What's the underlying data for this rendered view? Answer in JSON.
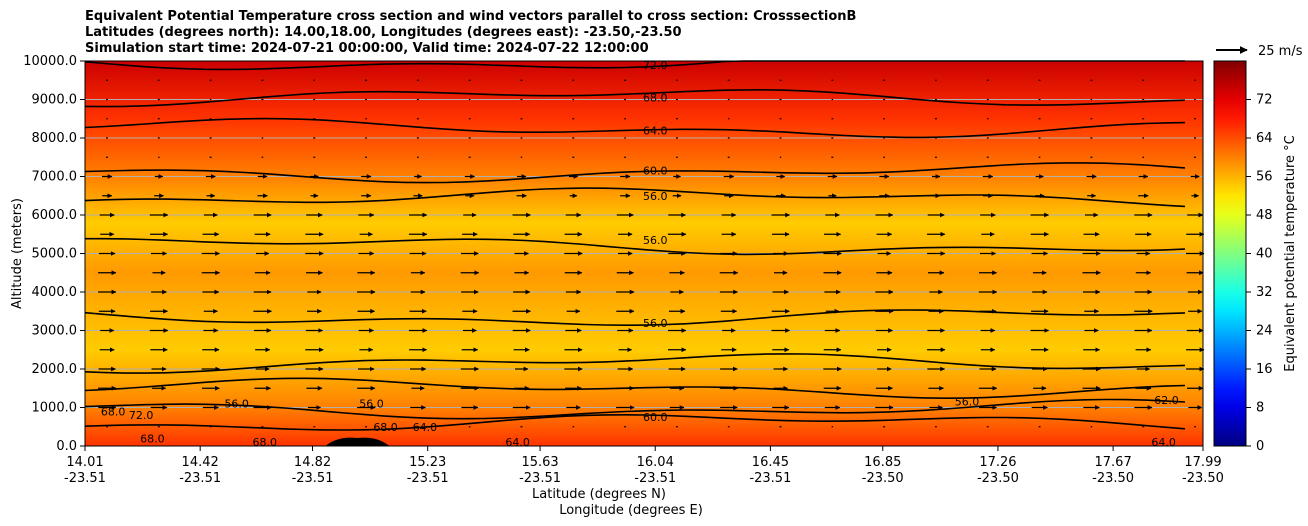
{
  "title": {
    "line1": "Equivalent Potential Temperature cross section and wind vectors parallel to cross section: CrosssectionB",
    "line2": "Latitudes (degrees north): 14.00,18.00, Longitudes (degrees east): -23.50,-23.50",
    "line3": "Simulation start time: 2024-07-21 00:00:00, Valid time: 2024-07-22 12:00:00"
  },
  "chart_data": {
    "type": "heatmap",
    "xlabel": "Latitude (degrees N)",
    "xlabel2": "Longitude (degrees E)",
    "ylabel": "Altitude (meters)",
    "ylim": [
      0,
      10000
    ],
    "yticks": [
      "0.0",
      "1000.0",
      "2000.0",
      "3000.0",
      "4000.0",
      "5000.0",
      "6000.0",
      "7000.0",
      "8000.0",
      "9000.0",
      "10000.0"
    ],
    "xticks": [
      {
        "lat": "14.01",
        "lon": "-23.51"
      },
      {
        "lat": "14.42",
        "lon": "-23.51"
      },
      {
        "lat": "14.82",
        "lon": "-23.51"
      },
      {
        "lat": "15.23",
        "lon": "-23.51"
      },
      {
        "lat": "15.63",
        "lon": "-23.51"
      },
      {
        "lat": "16.04",
        "lon": "-23.51"
      },
      {
        "lat": "16.45",
        "lon": "-23.51"
      },
      {
        "lat": "16.85",
        "lon": "-23.50"
      },
      {
        "lat": "17.26",
        "lon": "-23.50"
      },
      {
        "lat": "17.67",
        "lon": "-23.50"
      },
      {
        "lat": "17.99",
        "lon": "-23.50"
      }
    ],
    "xlim": [
      14.01,
      17.99
    ],
    "colorbar": {
      "label": "Equivalent potential temperature °C",
      "range": [
        0,
        80
      ],
      "ticks": [
        "0",
        "8",
        "16",
        "24",
        "32",
        "40",
        "48",
        "56",
        "64",
        "72"
      ],
      "colormap": "jet"
    },
    "reference_vector": "25 m/s",
    "grid": true,
    "contour_labels": [
      {
        "text": "72.0",
        "lat": 16.04,
        "alt": 9900
      },
      {
        "text": "68.0",
        "lat": 16.04,
        "alt": 9050
      },
      {
        "text": "64.0",
        "lat": 16.04,
        "alt": 8200
      },
      {
        "text": "60.0",
        "lat": 16.04,
        "alt": 7150
      },
      {
        "text": "56.0",
        "lat": 16.04,
        "alt": 6500
      },
      {
        "text": "56.0",
        "lat": 16.04,
        "alt": 5350
      },
      {
        "text": "56.0",
        "lat": 16.04,
        "alt": 3200
      },
      {
        "text": "60.0",
        "lat": 16.04,
        "alt": 750
      },
      {
        "text": "68.0",
        "lat": 14.11,
        "alt": 900
      },
      {
        "text": "72.0",
        "lat": 14.21,
        "alt": 800
      },
      {
        "text": "68.0",
        "lat": 14.25,
        "alt": 200
      },
      {
        "text": "56.0",
        "lat": 14.55,
        "alt": 1100
      },
      {
        "text": "68.0",
        "lat": 14.65,
        "alt": 100
      },
      {
        "text": "56.0",
        "lat": 15.03,
        "alt": 1100
      },
      {
        "text": "68.0",
        "lat": 15.08,
        "alt": 500
      },
      {
        "text": "64.0",
        "lat": 15.22,
        "alt": 500
      },
      {
        "text": "64.0",
        "lat": 15.55,
        "alt": 100
      },
      {
        "text": "56.0",
        "lat": 17.15,
        "alt": 1150
      },
      {
        "text": "62.0",
        "lat": 17.86,
        "alt": 1200
      },
      {
        "text": "64.0",
        "lat": 17.85,
        "alt": 100
      }
    ],
    "profile": [
      {
        "alt": 0,
        "temp": 66
      },
      {
        "alt": 1000,
        "temp": 60
      },
      {
        "alt": 2500,
        "temp": 54
      },
      {
        "alt": 4500,
        "temp": 58
      },
      {
        "alt": 5800,
        "temp": 54
      },
      {
        "alt": 7000,
        "temp": 60
      },
      {
        "alt": 8500,
        "temp": 66
      },
      {
        "alt": 10000,
        "temp": 74
      }
    ]
  }
}
